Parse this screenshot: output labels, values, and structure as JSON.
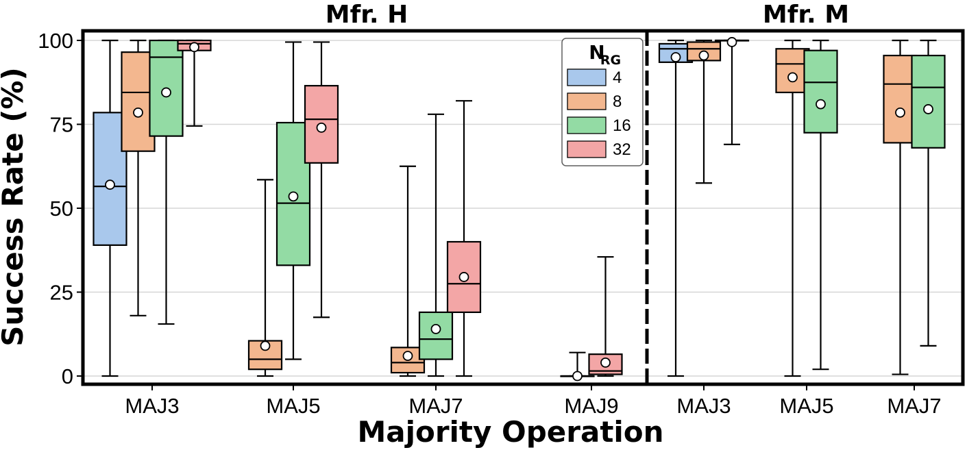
{
  "chart_data": {
    "type": "box",
    "ylabel": "Success Rate (%)",
    "xlabel": "Majority Operation",
    "ylim": [
      0,
      100
    ],
    "yticks": [
      0,
      25,
      50,
      75,
      100
    ],
    "grid": "horizontal",
    "legend": {
      "title_main": "N",
      "title_sub": "RG",
      "position": "inside-top-right of first panel",
      "entries": [
        {
          "label": "4",
          "color": "#a9c8ec"
        },
        {
          "label": "8",
          "color": "#f3b78f"
        },
        {
          "label": "16",
          "color": "#93dba4"
        },
        {
          "label": "32",
          "color": "#f3a6a6"
        }
      ]
    },
    "panels": [
      {
        "title": "Mfr. H",
        "categories": [
          "MAJ3",
          "MAJ5",
          "MAJ7",
          "MAJ9"
        ],
        "groups": [
          {
            "category": "MAJ3",
            "boxes": [
              {
                "series": "4",
                "min": 0,
                "q1": 39,
                "median": 56.5,
                "q3": 78.5,
                "max": 100,
                "mean": 57
              },
              {
                "series": "8",
                "min": 18,
                "q1": 67,
                "median": 84.5,
                "q3": 96.5,
                "max": 100,
                "mean": 78.5
              },
              {
                "series": "16",
                "min": 15.5,
                "q1": 71.5,
                "median": 95,
                "q3": 100,
                "max": 100,
                "mean": 84.5
              },
              {
                "series": "32",
                "min": 74.5,
                "q1": 97,
                "median": 99,
                "q3": 100,
                "max": 100,
                "mean": 98
              }
            ]
          },
          {
            "category": "MAJ5",
            "boxes": [
              {
                "series": "8",
                "min": 0,
                "q1": 2,
                "median": 5,
                "q3": 10.5,
                "max": 58.5,
                "mean": 9
              },
              {
                "series": "16",
                "min": 5,
                "q1": 33,
                "median": 51.5,
                "q3": 75.5,
                "max": 99.5,
                "mean": 53.5
              },
              {
                "series": "32",
                "min": 17.5,
                "q1": 63.5,
                "median": 76.5,
                "q3": 86.5,
                "max": 99.5,
                "mean": 74
              }
            ]
          },
          {
            "category": "MAJ7",
            "boxes": [
              {
                "series": "8",
                "min": 0,
                "q1": 1,
                "median": 4,
                "q3": 8.5,
                "max": 62.5,
                "mean": 6
              },
              {
                "series": "16",
                "min": 0,
                "q1": 5,
                "median": 11,
                "q3": 19,
                "max": 78,
                "mean": 14
              },
              {
                "series": "32",
                "min": 0,
                "q1": 19,
                "median": 27.5,
                "q3": 40,
                "max": 82,
                "mean": 29.5
              }
            ]
          },
          {
            "category": "MAJ9",
            "boxes": [
              {
                "series": "16",
                "min": 0,
                "q1": 0,
                "median": 0,
                "q3": 0,
                "max": 7,
                "mean": 0
              },
              {
                "series": "32",
                "min": 0,
                "q1": 0.5,
                "median": 1.5,
                "q3": 6.5,
                "max": 35.5,
                "mean": 4
              }
            ]
          }
        ]
      },
      {
        "title": "Mfr. M",
        "categories": [
          "MAJ3",
          "MAJ5",
          "MAJ7"
        ],
        "groups": [
          {
            "category": "MAJ3",
            "boxes": [
              {
                "series": "4",
                "min": 0,
                "q1": 93.5,
                "median": 97.5,
                "q3": 99,
                "max": 100,
                "mean": 95
              },
              {
                "series": "8",
                "min": 57.5,
                "q1": 94,
                "median": 97.5,
                "q3": 99.5,
                "max": 100,
                "mean": 95.5
              },
              {
                "series": "16",
                "min": 69,
                "q1": 100,
                "median": 100,
                "q3": 100,
                "max": 100,
                "mean": 99.5
              }
            ]
          },
          {
            "category": "MAJ5",
            "boxes": [
              {
                "series": "8",
                "min": 0,
                "q1": 84.5,
                "median": 93,
                "q3": 97.5,
                "max": 100,
                "mean": 89
              },
              {
                "series": "16",
                "min": 2,
                "q1": 72.5,
                "median": 87.5,
                "q3": 97,
                "max": 100,
                "mean": 81
              }
            ]
          },
          {
            "category": "MAJ7",
            "boxes": [
              {
                "series": "8",
                "min": 0.5,
                "q1": 69.5,
                "median": 87,
                "q3": 95.5,
                "max": 100,
                "mean": 78.5
              },
              {
                "series": "16",
                "min": 9,
                "q1": 68,
                "median": 86,
                "q3": 95.5,
                "max": 100,
                "mean": 79.5
              }
            ]
          }
        ]
      }
    ]
  }
}
